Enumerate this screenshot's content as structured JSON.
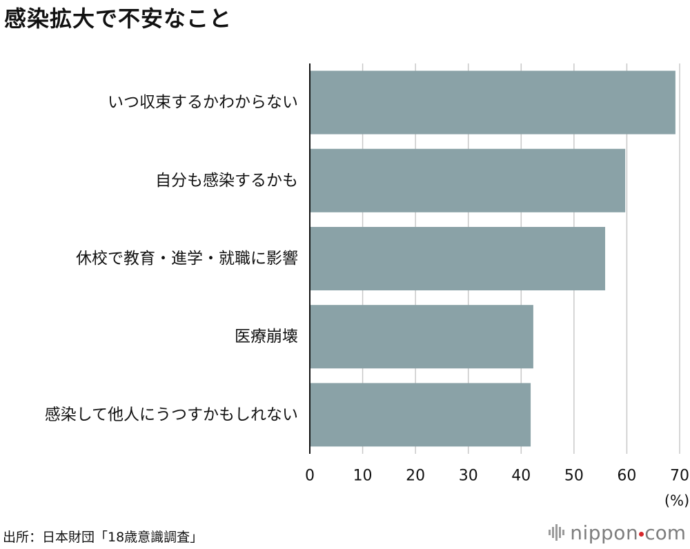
{
  "chart_data": {
    "type": "bar",
    "orientation": "horizontal",
    "title": "感染拡大で不安なこと",
    "categories": [
      "いつ収束するかわからない",
      "自分も感染するかも",
      "休校で教育・進学・就職に影響",
      "医療崩壊",
      "感染して他人にうつすかもしれない"
    ],
    "values": [
      69.2,
      59.7,
      55.9,
      42.3,
      41.8
    ],
    "xlim": [
      0,
      70
    ],
    "xticks": [
      "0",
      "10",
      "20",
      "30",
      "40",
      "50",
      "60",
      "70"
    ],
    "unit_label": "(%)",
    "grid": true,
    "bar_color": "#8aa2a7",
    "grid_color": "#c8c8c8"
  },
  "source": "出所：日本財団「18歳意識調査」",
  "brand": {
    "name": "nippon",
    "suffix": "com"
  }
}
